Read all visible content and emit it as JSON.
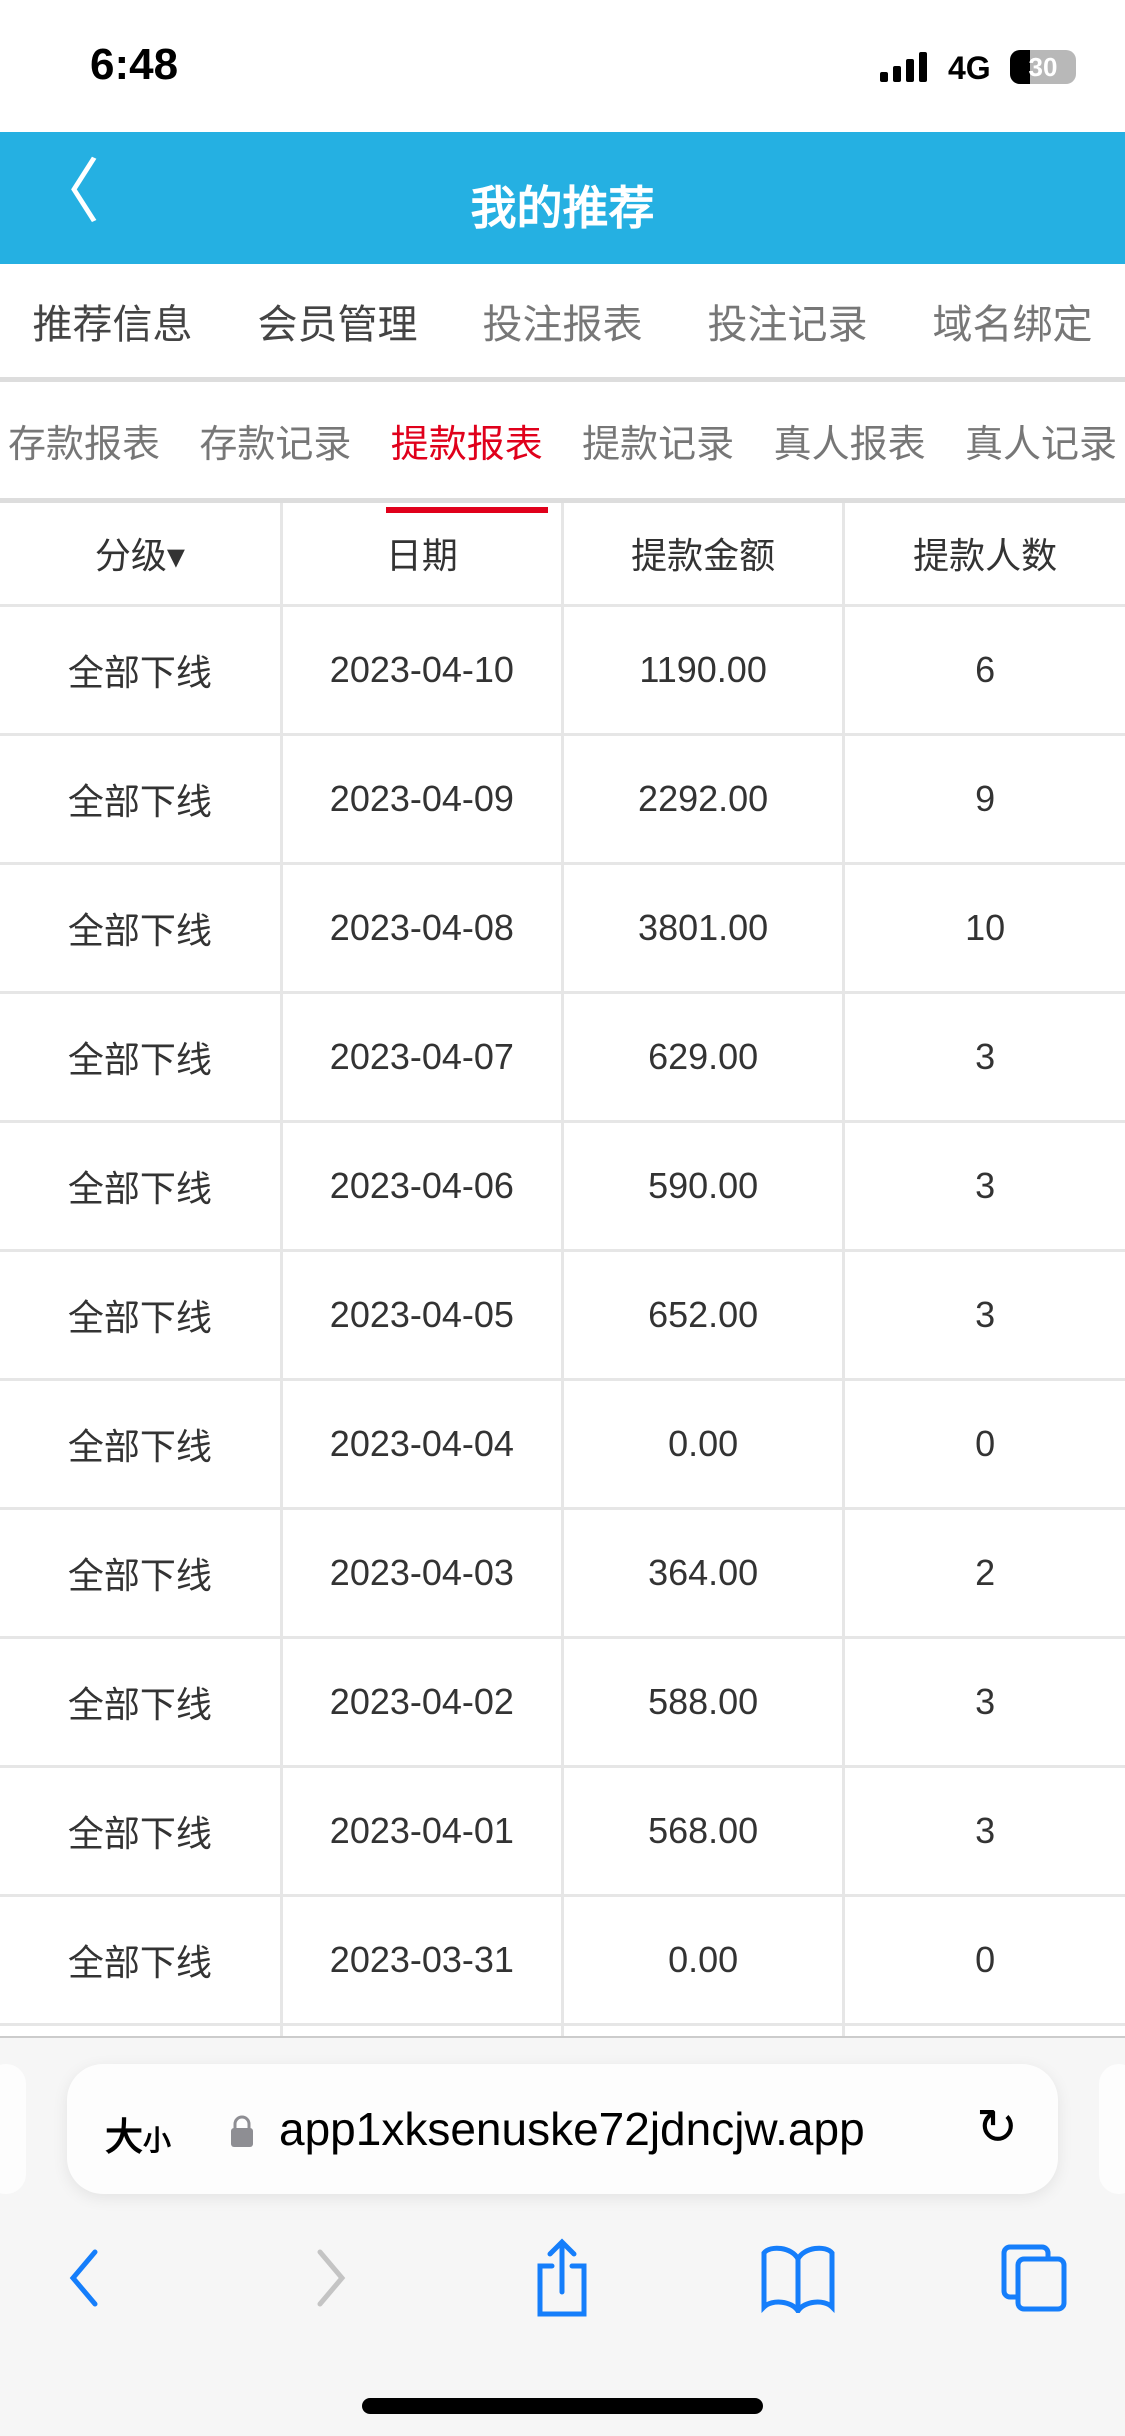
{
  "status": {
    "time": "6:48",
    "network": "4G",
    "battery": "30"
  },
  "header": {
    "title": "我的推荐"
  },
  "tabs_row1": [
    {
      "label": "推荐信息"
    },
    {
      "label": "会员管理"
    },
    {
      "label": "投注报表"
    },
    {
      "label": "投注记录"
    },
    {
      "label": "域名绑定"
    }
  ],
  "tabs_row2": [
    {
      "label": "存款报表"
    },
    {
      "label": "存款记录"
    },
    {
      "label": "提款报表",
      "active": true
    },
    {
      "label": "提款记录"
    },
    {
      "label": "真人报表"
    },
    {
      "label": "真人记录"
    }
  ],
  "table": {
    "headers": [
      "分级▾",
      "日期",
      "提款金额",
      "提款人数"
    ],
    "rows": [
      [
        "全部下线",
        "2023-04-10",
        "1190.00",
        "6"
      ],
      [
        "全部下线",
        "2023-04-09",
        "2292.00",
        "9"
      ],
      [
        "全部下线",
        "2023-04-08",
        "3801.00",
        "10"
      ],
      [
        "全部下线",
        "2023-04-07",
        "629.00",
        "3"
      ],
      [
        "全部下线",
        "2023-04-06",
        "590.00",
        "3"
      ],
      [
        "全部下线",
        "2023-04-05",
        "652.00",
        "3"
      ],
      [
        "全部下线",
        "2023-04-04",
        "0.00",
        "0"
      ],
      [
        "全部下线",
        "2023-04-03",
        "364.00",
        "2"
      ],
      [
        "全部下线",
        "2023-04-02",
        "588.00",
        "3"
      ],
      [
        "全部下线",
        "2023-04-01",
        "568.00",
        "3"
      ],
      [
        "全部下线",
        "2023-03-31",
        "0.00",
        "0"
      ]
    ]
  },
  "browser": {
    "text_size_big": "大",
    "text_size_small": "小",
    "url": "app1xksenuske72jdncjw.app"
  },
  "colors": {
    "header": "#25b0e2",
    "active_tab": "#e0001b",
    "ios_blue": "#157efb"
  }
}
